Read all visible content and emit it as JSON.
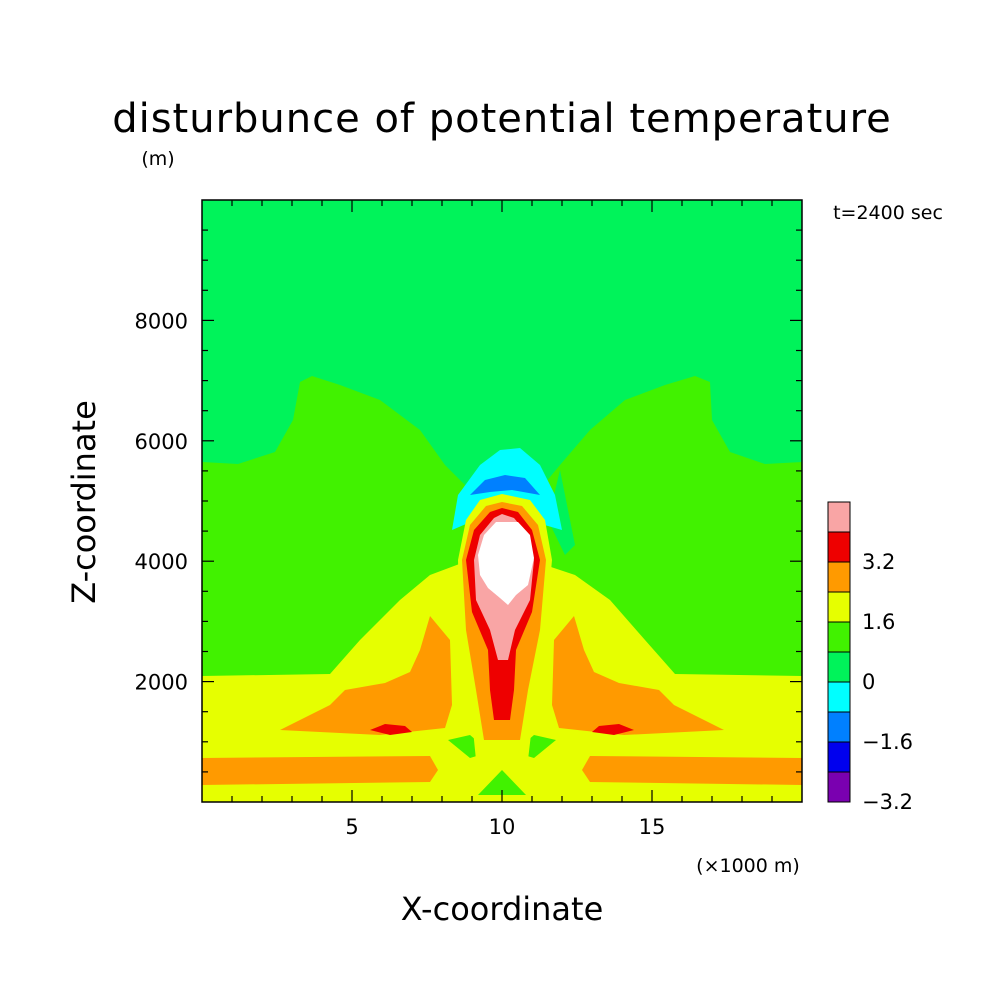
{
  "chart_data": {
    "type": "contour",
    "title": "disturbunce of potential temperature",
    "ylabel": "Z-coordinate",
    "yunit": "(m)",
    "xlabel": "X-coordinate",
    "xunit": "(×1000 m)",
    "time_label": "t=2400 sec",
    "xlim": [
      0,
      20
    ],
    "ylim": [
      0,
      10000
    ],
    "x_ticks": [
      5,
      10,
      15
    ],
    "y_ticks": [
      2000,
      4000,
      6000,
      8000
    ],
    "colorbar": {
      "levels": [
        {
          "label": "",
          "color": "#f9a5a5"
        },
        {
          "label": "3.2",
          "color": "#ee0000"
        },
        {
          "label": "",
          "color": "#ff9a00"
        },
        {
          "label": "1.6",
          "color": "#e6ff00"
        },
        {
          "label": "",
          "color": "#41f200"
        },
        {
          "label": "0",
          "color": "#00f35a"
        },
        {
          "label": "",
          "color": "#00ffff"
        },
        {
          "label": "-1.6",
          "color": "#0080ff"
        },
        {
          "label": "",
          "color": "#0000ee"
        },
        {
          "label": "-3.2",
          "color": "#7a00b0"
        }
      ]
    }
  }
}
